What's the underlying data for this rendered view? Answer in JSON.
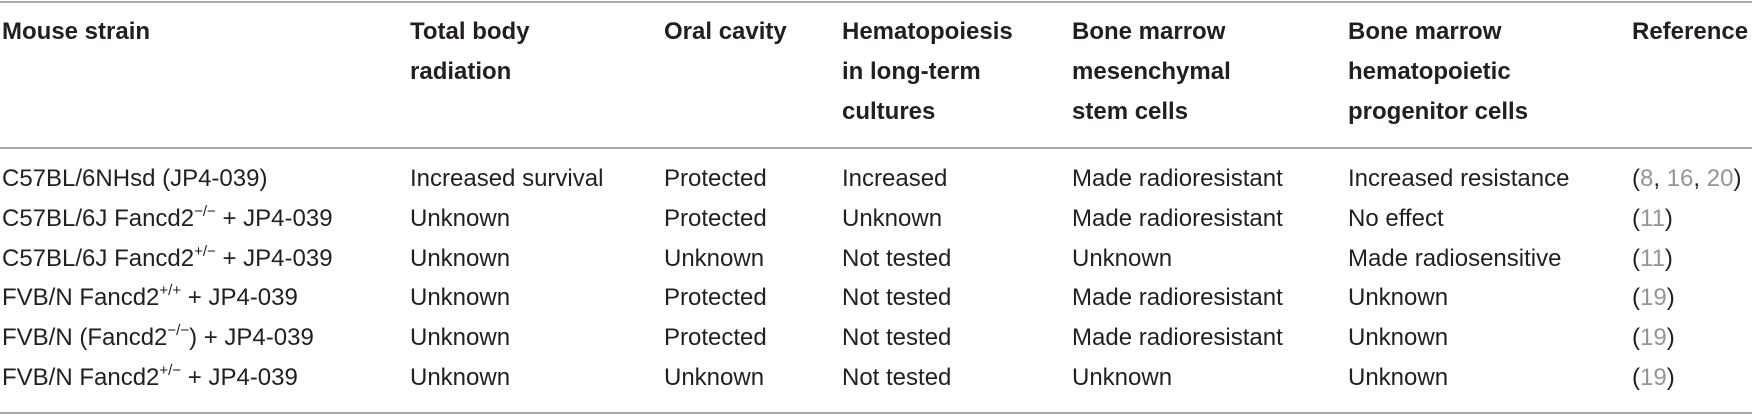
{
  "table": {
    "header": [
      [
        "Mouse strain"
      ],
      [
        "Total body",
        "radiation"
      ],
      [
        "Oral cavity"
      ],
      [
        "Hematopoiesis",
        "in long-term",
        "cultures"
      ],
      [
        "Bone marrow",
        "mesenchymal",
        "stem cells"
      ],
      [
        "Bone marrow",
        "hematopoietic",
        "progenitor cells"
      ],
      [
        "Reference"
      ]
    ],
    "rows": [
      [
        {
          "text": "C57BL/6NHsd (JP4-039)"
        },
        "Increased survival",
        "Protected",
        "Increased",
        "Made radioresistant",
        "Increased resistance",
        "(8, 16, 20)"
      ],
      [
        {
          "text": "C57BL/6J Fancd2",
          "sup": "−/−",
          "after": " + JP4-039"
        },
        "Unknown",
        "Protected",
        "Unknown",
        "Made radioresistant",
        "No effect",
        "(11)"
      ],
      [
        {
          "text": "C57BL/6J Fancd2",
          "sup": "+/−",
          "after": " + JP4-039"
        },
        "Unknown",
        "Unknown",
        "Not tested",
        "Unknown",
        "Made radiosensitive",
        "(11)"
      ],
      [
        {
          "text": "FVB/N Fancd2",
          "sup": "+/+",
          "after": " + JP4-039"
        },
        "Unknown",
        "Protected",
        "Not tested",
        "Made radioresistant",
        "Unknown",
        "(19)"
      ],
      [
        {
          "text": "FVB/N (Fancd2",
          "sup": "−/−",
          "after": ") + JP4-039"
        },
        "Unknown",
        "Protected",
        "Not tested",
        "Made radioresistant",
        "Unknown",
        "(19)"
      ],
      [
        {
          "text": "FVB/N Fancd2",
          "sup": "+/−",
          "after": " + JP4-039"
        },
        "Unknown",
        "Unknown",
        "Not tested",
        "Unknown",
        "Unknown",
        "(19)"
      ]
    ]
  }
}
